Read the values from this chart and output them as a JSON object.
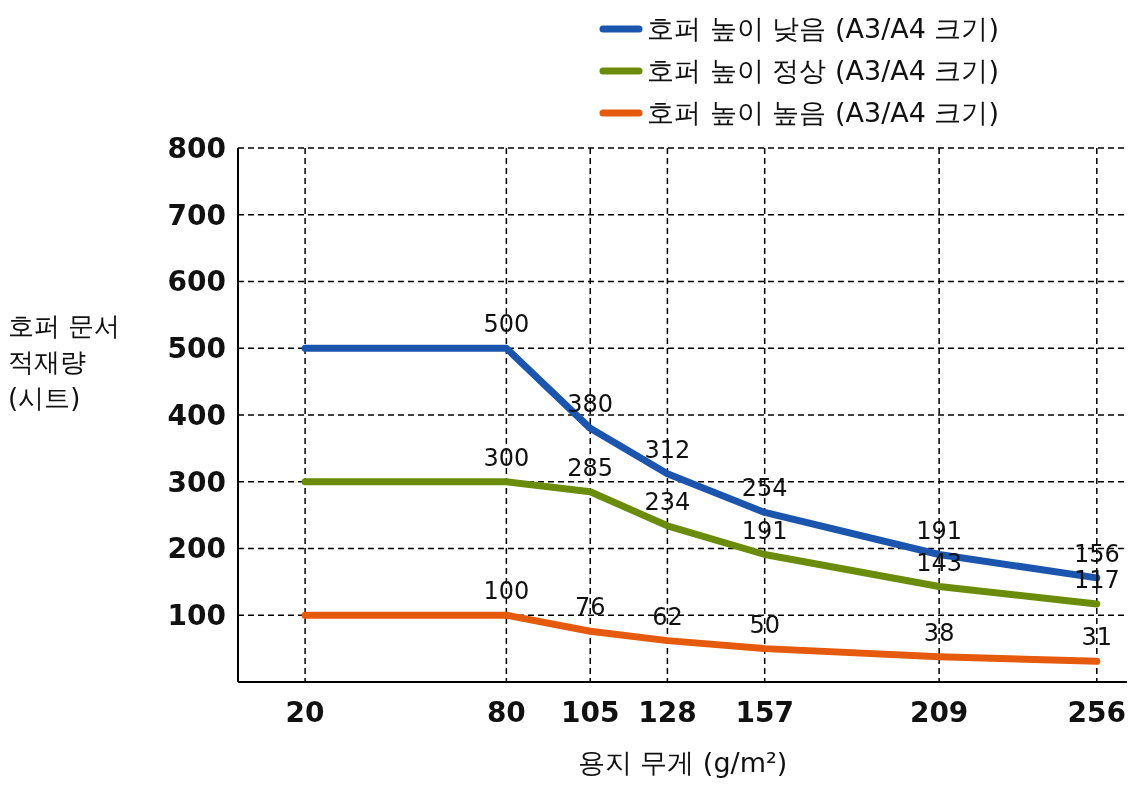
{
  "chart_data": {
    "type": "line",
    "xlabel": "용지 무게 (g/m²)",
    "ylabel": "호퍼 문서 적재량 (시트)",
    "x": [
      20,
      80,
      105,
      128,
      157,
      209,
      256
    ],
    "series": [
      {
        "name": "호퍼 높이 낮음 (A3/A4 크기)",
        "color": "#1b55ad",
        "values": [
          500,
          500,
          380,
          312,
          254,
          191,
          156
        ],
        "value_labels": [
          null,
          "500",
          "380",
          "312",
          "254",
          "191",
          "156"
        ]
      },
      {
        "name": "호퍼 높이 정상 (A3/A4 크기)",
        "color": "#6a8c0a",
        "values": [
          300,
          300,
          285,
          234,
          191,
          143,
          117
        ],
        "value_labels": [
          null,
          "300",
          "285",
          "234",
          "191",
          "143",
          "117"
        ]
      },
      {
        "name": "호퍼 높이 높음 (A3/A4 크기)",
        "color": "#e65a0e",
        "values": [
          100,
          100,
          76,
          62,
          50,
          38,
          31
        ],
        "value_labels": [
          null,
          "100",
          "76",
          "62",
          "50",
          "38",
          "31"
        ]
      }
    ],
    "xlim": [
      0,
      265
    ],
    "xticks": [
      20,
      80,
      105,
      128,
      157,
      209,
      256
    ],
    "ylim": [
      0,
      800
    ],
    "yticks": [
      100,
      200,
      300,
      400,
      500,
      600,
      700,
      800
    ],
    "grid": true,
    "legend": "top right",
    "marker": "none",
    "line_style": "solid"
  }
}
